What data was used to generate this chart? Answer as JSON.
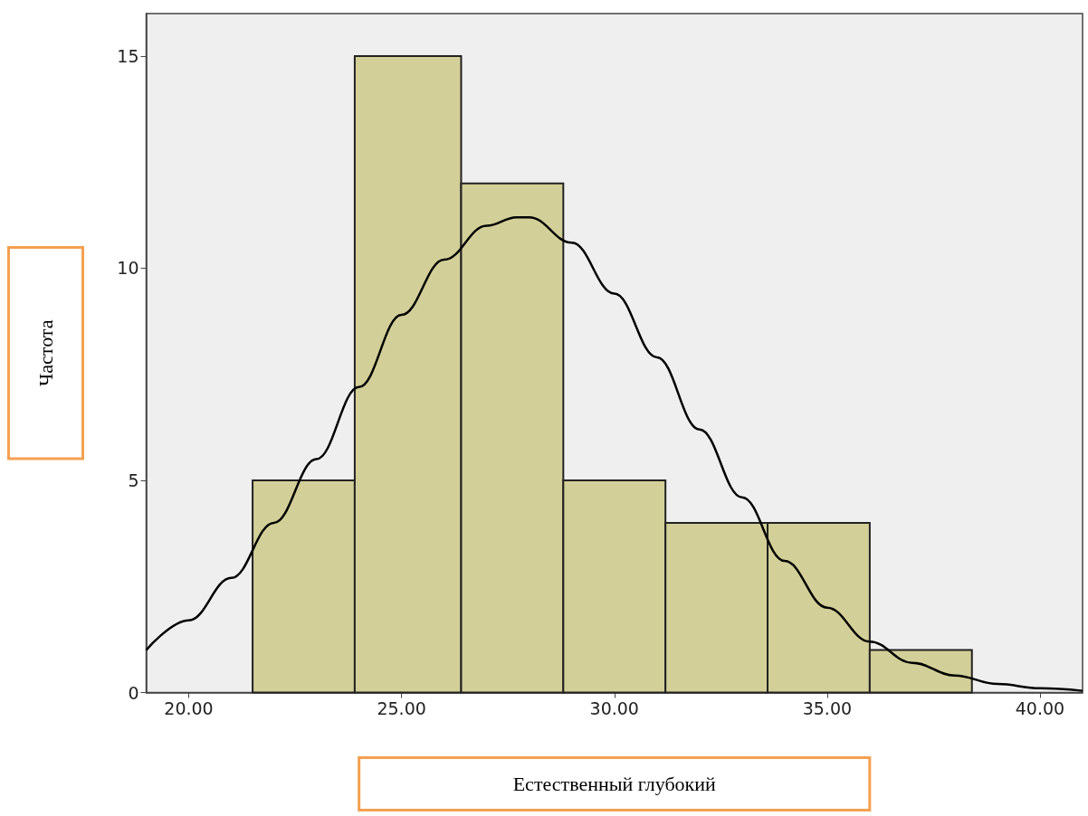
{
  "chart_data": {
    "type": "histogram",
    "xlabel": "Естественный глубокий",
    "ylabel": "Частота",
    "bins": [
      21.5,
      23.9,
      26.4,
      28.8,
      31.2,
      33.6,
      36.0,
      38.4
    ],
    "values": [
      5,
      15,
      12,
      5,
      4,
      4,
      1
    ],
    "color": "#d3cf98",
    "series": [
      {
        "type": "line",
        "color": "#000000",
        "marker": "none",
        "x": [
          19,
          20,
          21,
          22,
          23,
          24,
          25,
          26,
          27,
          27.7,
          28,
          29,
          30,
          31,
          32,
          33,
          34,
          35,
          36,
          37,
          38,
          39,
          40,
          41
        ],
        "values": [
          1.0,
          1.7,
          2.7,
          4.0,
          5.5,
          7.2,
          8.9,
          10.2,
          11.0,
          11.2,
          11.2,
          10.6,
          9.4,
          7.9,
          6.2,
          4.6,
          3.1,
          2.0,
          1.2,
          0.7,
          0.4,
          0.2,
          0.1,
          0.04
        ]
      }
    ],
    "xlim": [
      19,
      41
    ],
    "xticks": [
      {
        "value": 20,
        "label": "20.00"
      },
      {
        "value": 25,
        "label": "25.00"
      },
      {
        "value": 30,
        "label": "30.00"
      },
      {
        "value": 35,
        "label": "35.00"
      },
      {
        "value": 40,
        "label": "40.00"
      }
    ],
    "ylim": [
      0,
      16
    ],
    "yticks": [
      0,
      5,
      10,
      15
    ],
    "grid": false
  }
}
